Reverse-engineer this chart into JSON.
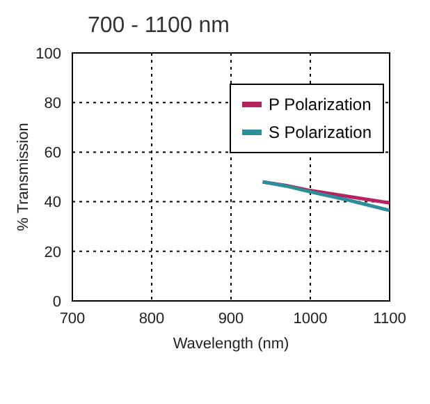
{
  "chart_data": {
    "type": "line",
    "title": "700 - 1100 nm",
    "xlabel": "Wavelength (nm)",
    "ylabel": "% Transmission",
    "x": [
      940,
      970,
      1000,
      1050,
      1100
    ],
    "series": [
      {
        "name": "P Polarization",
        "color": "#b5225f",
        "values": [
          48,
          46.5,
          44.5,
          42,
          39.5
        ]
      },
      {
        "name": "S Polarization",
        "color": "#2b8e99",
        "values": [
          48,
          46.3,
          44,
          40.5,
          36.5
        ]
      }
    ],
    "xlim": [
      700,
      1100
    ],
    "xticks": [
      700,
      800,
      900,
      1000,
      1100
    ],
    "ylim": [
      0,
      100
    ],
    "yticks": [
      0,
      20,
      40,
      60,
      80,
      100
    ],
    "grid": true,
    "legend": "top right",
    "marker": "none",
    "line_style": "solid"
  }
}
